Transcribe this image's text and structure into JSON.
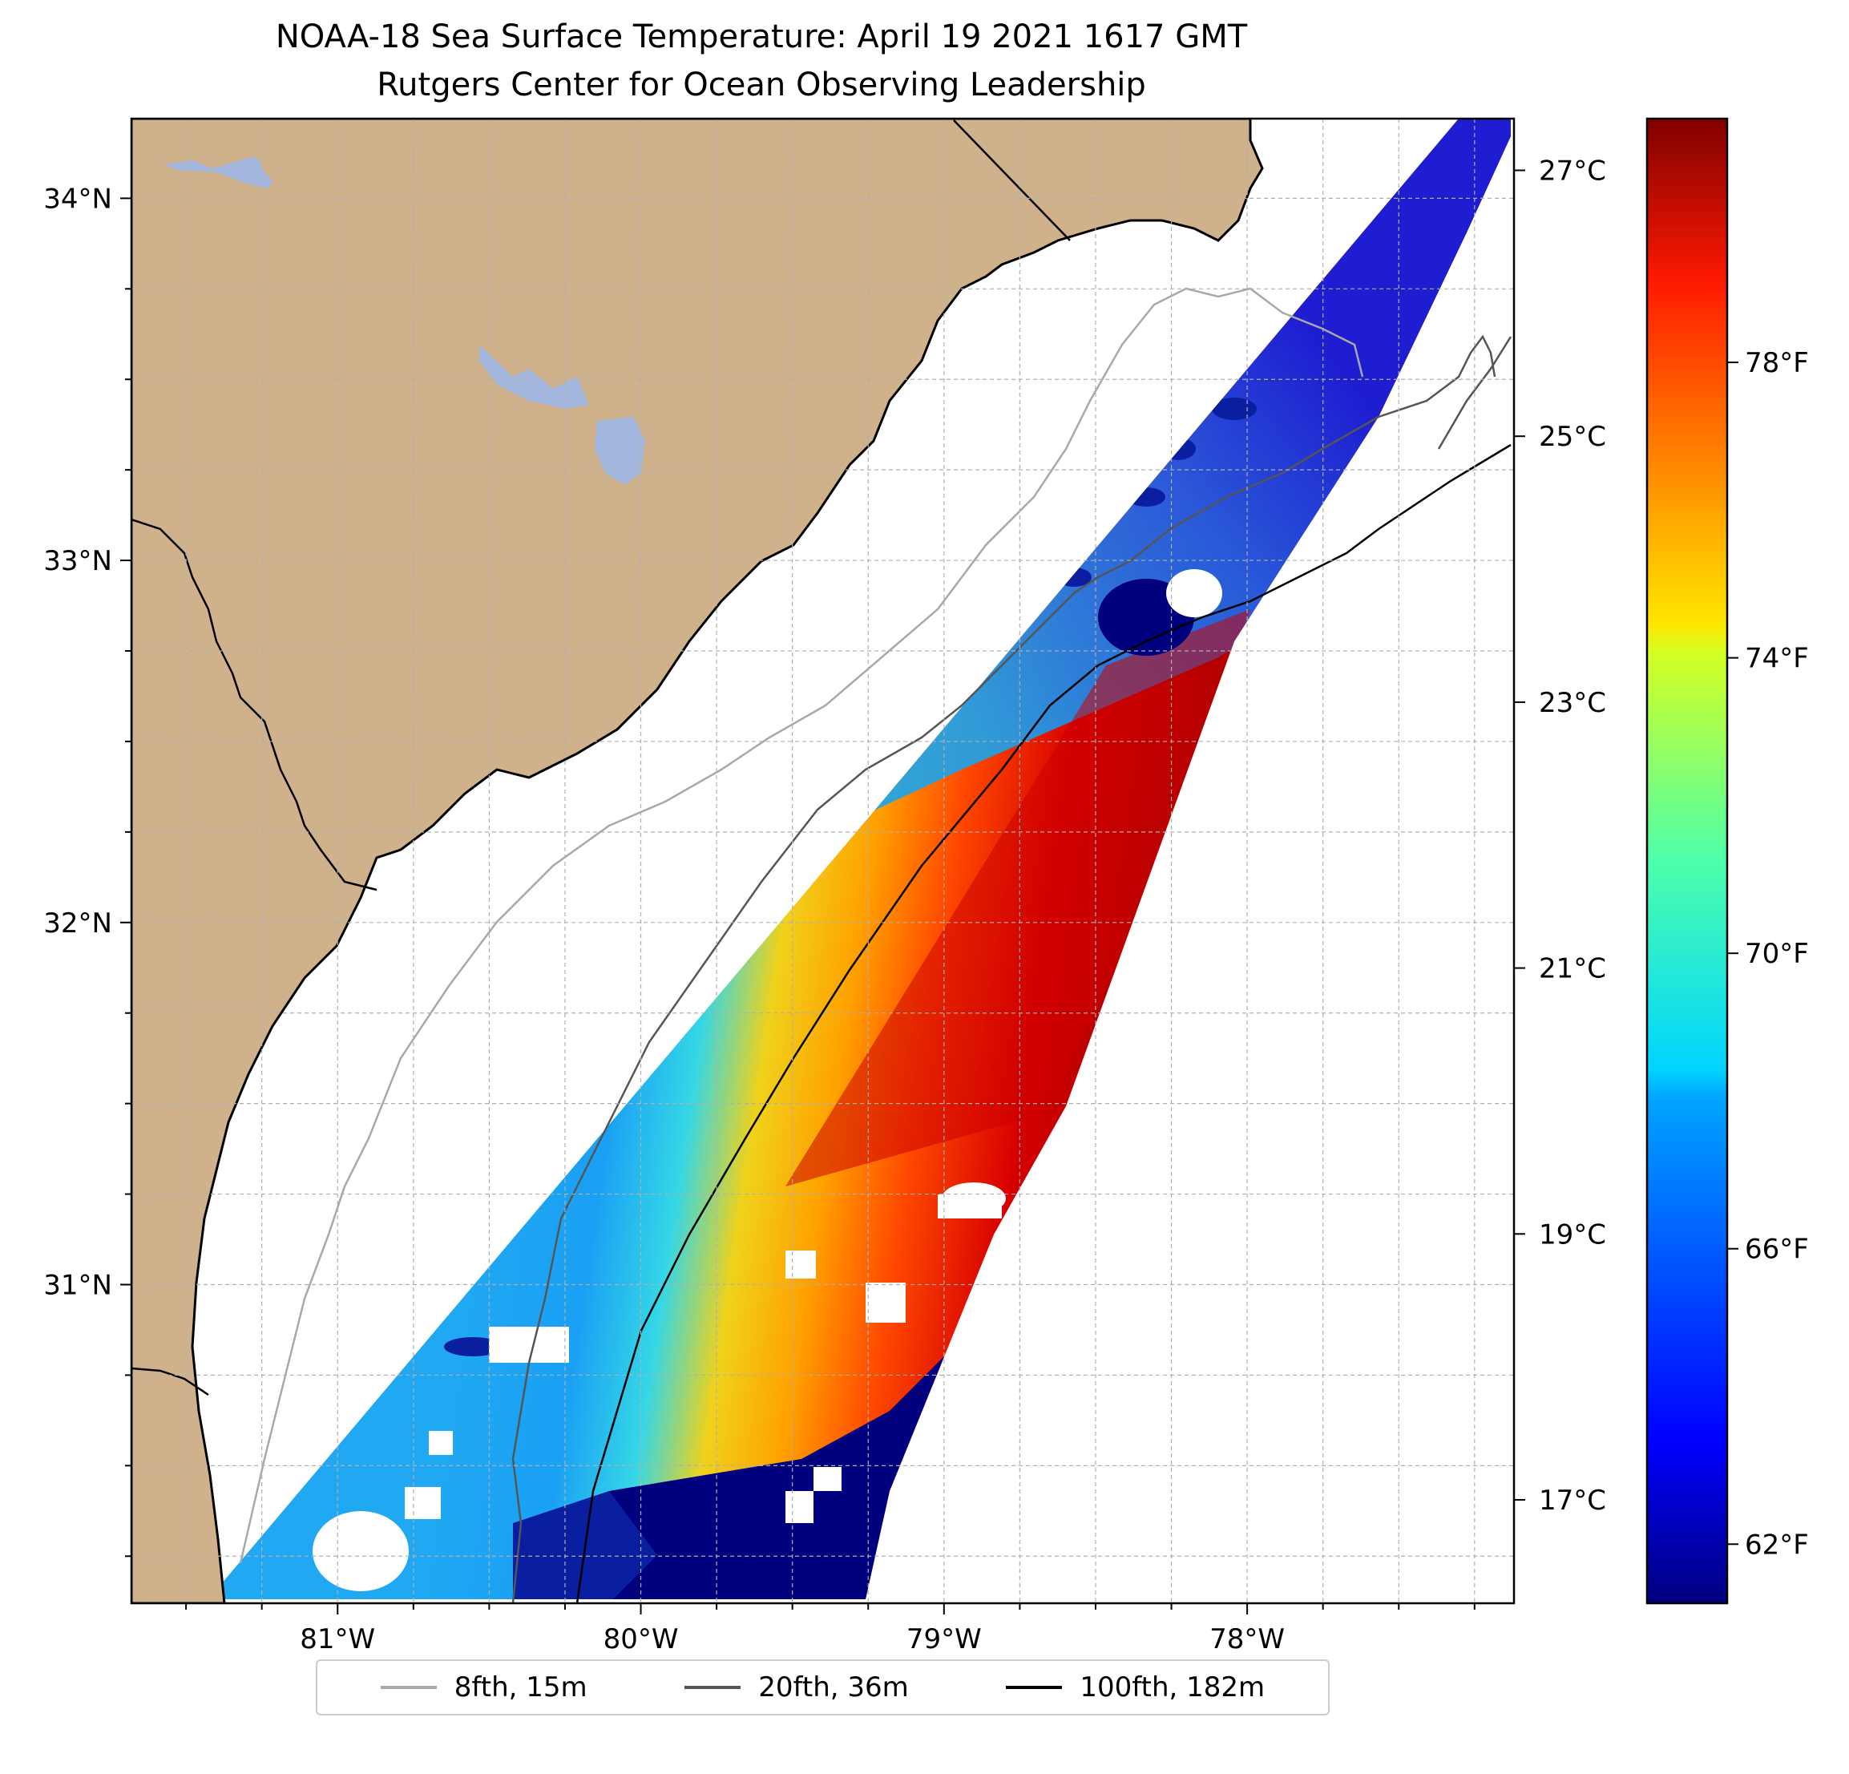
{
  "figure": {
    "title_line1": "NOAA-18 Sea Surface Temperature: April 19 2021 1617 GMT",
    "title_line2": "Rutgers Center for Ocean Observing Leadership"
  },
  "map": {
    "lon_range": [
      -81.68,
      -77.12
    ],
    "lat_range": [
      30.12,
      34.22
    ],
    "gridlines": true,
    "land_color": "#cfb28c",
    "lake_color": "#a2b6de",
    "x_tick_labels": [
      {
        "lon": -81,
        "label": "81°W"
      },
      {
        "lon": -80,
        "label": "80°W"
      },
      {
        "lon": -79,
        "label": "79°W"
      },
      {
        "lon": -78,
        "label": "78°W"
      }
    ],
    "y_tick_labels": [
      {
        "lat": 34,
        "label": "34°N"
      },
      {
        "lat": 33,
        "label": "33°N"
      },
      {
        "lat": 32,
        "label": "32°N"
      },
      {
        "lat": 31,
        "label": "31°N"
      }
    ]
  },
  "colorbar": {
    "colormap": "jet",
    "min_f": 61.2,
    "max_f": 81.3,
    "celsius_ticks": [
      {
        "c": 17,
        "label": "17°C"
      },
      {
        "c": 19,
        "label": "19°C"
      },
      {
        "c": 21,
        "label": "21°C"
      },
      {
        "c": 23,
        "label": "23°C"
      },
      {
        "c": 25,
        "label": "25°C"
      },
      {
        "c": 27,
        "label": "27°C"
      }
    ],
    "fahrenheit_ticks": [
      {
        "f": 62,
        "label": "62°F"
      },
      {
        "f": 66,
        "label": "66°F"
      },
      {
        "f": 70,
        "label": "70°F"
      },
      {
        "f": 74,
        "label": "74°F"
      },
      {
        "f": 78,
        "label": "78°F"
      }
    ]
  },
  "legend": {
    "placement": "bottom-center",
    "items": [
      {
        "label": "8fth, 15m",
        "color": "#a9a9a9"
      },
      {
        "label": "20fth, 36m",
        "color": "#555555"
      },
      {
        "label": "100fth, 182m",
        "color": "#000000"
      }
    ]
  }
}
